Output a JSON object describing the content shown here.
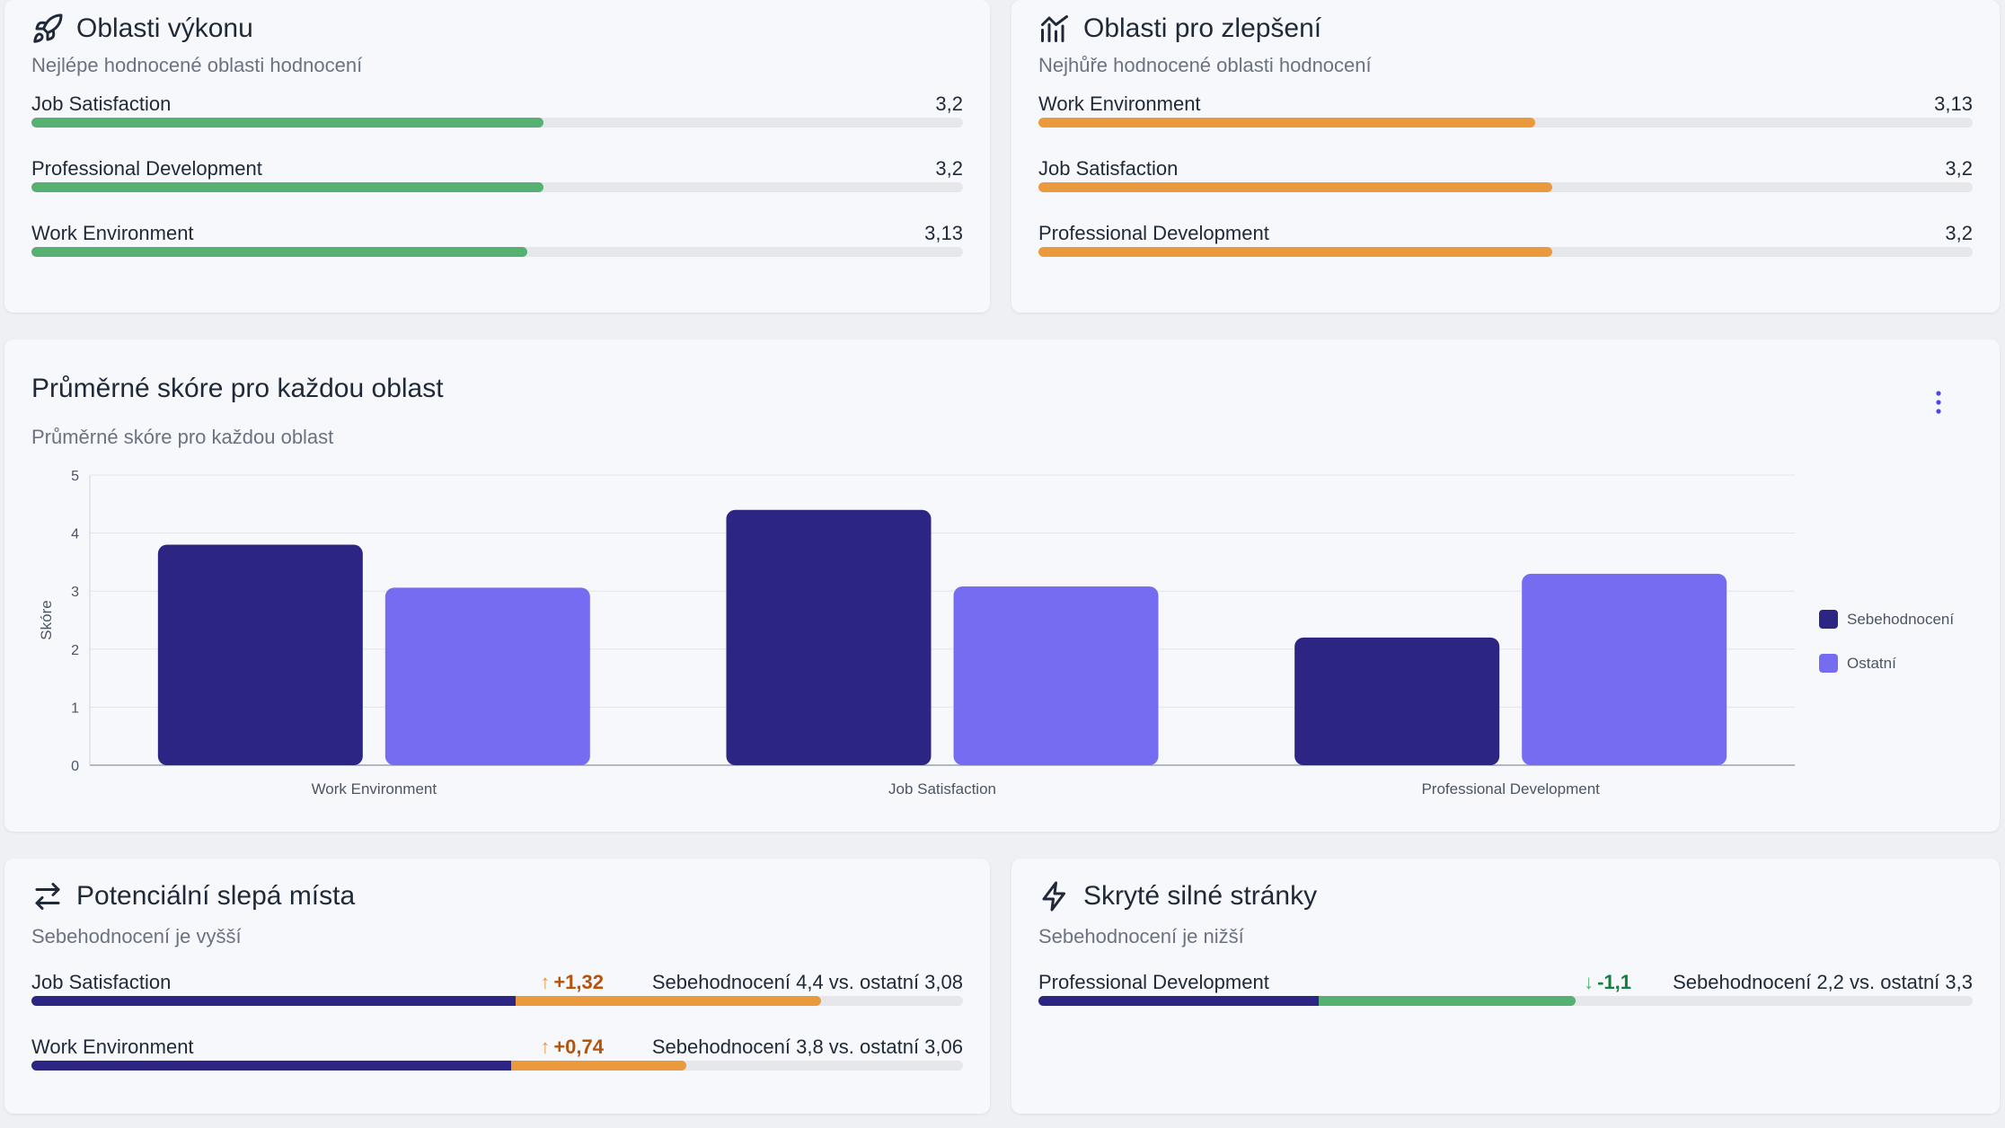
{
  "performance": {
    "title": "Oblasti výkonu",
    "subtitle": "Nejlépe hodnocené oblasti hodnocení",
    "items": [
      {
        "label": "Job Satisfaction",
        "value": "3,2",
        "fraction": 0.55
      },
      {
        "label": "Professional Development",
        "value": "3,2",
        "fraction": 0.55
      },
      {
        "label": "Work Environment",
        "value": "3,13",
        "fraction": 0.532
      }
    ],
    "bar_color": "#55b071"
  },
  "improvement": {
    "title": "Oblasti pro zlepšení",
    "subtitle": "Nejhůře hodnocené oblasti hodnocení",
    "items": [
      {
        "label": "Work Environment",
        "value": "3,13",
        "fraction": 0.532
      },
      {
        "label": "Job Satisfaction",
        "value": "3,2",
        "fraction": 0.55
      },
      {
        "label": "Professional Development",
        "value": "3,2",
        "fraction": 0.55
      }
    ],
    "bar_color": "#ea9a3c"
  },
  "average": {
    "title": "Průměrné skóre pro každou oblast",
    "subtitle": "Průměrné skóre pro každou oblast"
  },
  "chart_data": {
    "type": "bar",
    "categories": [
      "Work Environment",
      "Job Satisfaction",
      "Professional Development"
    ],
    "series": [
      {
        "name": "Sebehodnocení",
        "values": [
          3.8,
          4.4,
          2.2
        ],
        "color": "#2c2584"
      },
      {
        "name": "Ostatní",
        "values": [
          3.06,
          3.08,
          3.3
        ],
        "color": "#766cf2"
      }
    ],
    "xlabel": "",
    "ylabel": "Skóre",
    "ylim": [
      0,
      5
    ],
    "yticks": [
      "0",
      "1",
      "2",
      "3",
      "4",
      "5"
    ],
    "grid": true,
    "legend": "right"
  },
  "blindspots": {
    "title": "Potenciální slepá místa",
    "subtitle": "Sebehodnocení je vyšší",
    "items": [
      {
        "label": "Job Satisfaction",
        "delta": "+1,32",
        "comparison": "Sebehodnocení 4,4 vs. ostatní 3,08",
        "others_fraction": 0.52,
        "self_fraction": 0.848
      },
      {
        "label": "Work Environment",
        "delta": "+0,74",
        "comparison": "Sebehodnocení 3,8 vs. ostatní 3,06",
        "others_fraction": 0.515,
        "self_fraction": 0.703
      }
    ],
    "delta_color": "#b45309",
    "arrow_color": "#ea9a3c"
  },
  "hidden": {
    "title": "Skryté silné stránky",
    "subtitle": "Sebehodnocení je nižší",
    "items": [
      {
        "label": "Professional Development",
        "delta": "-1,1",
        "comparison": "Sebehodnocení 2,2 vs. ostatní 3,3",
        "self_fraction": 0.3,
        "others_fraction": 0.575
      }
    ],
    "delta_color": "#15803d",
    "arrow_color": "#55b071"
  }
}
